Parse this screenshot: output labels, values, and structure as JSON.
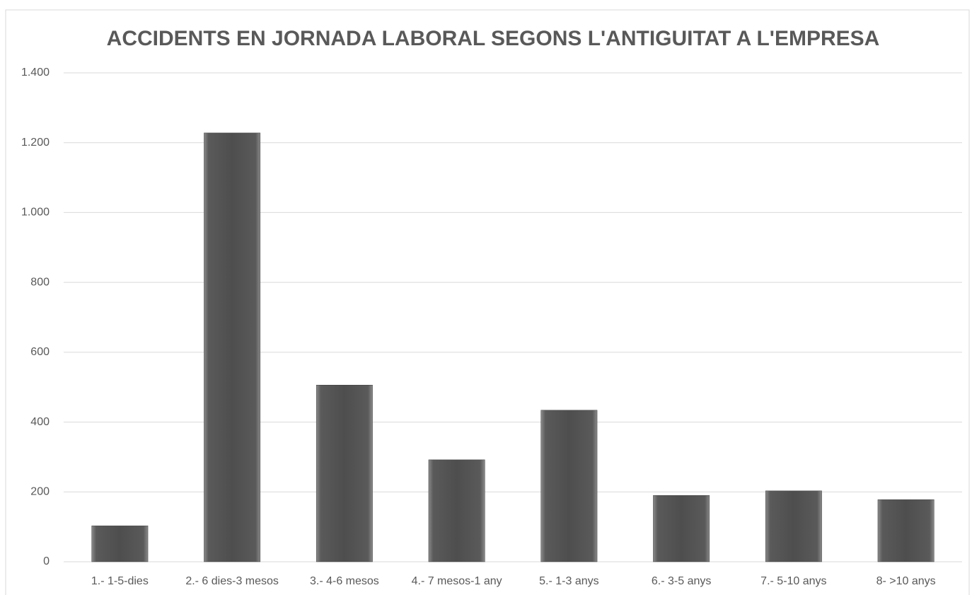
{
  "chart_data": {
    "type": "bar",
    "title": "ACCIDENTS EN JORNADA LABORAL SEGONS L'ANTIGUITAT A L'EMPRESA",
    "categories": [
      "1.- 1-5-dies",
      "2.- 6 dies-3 mesos",
      "3.- 4-6 mesos",
      "4.- 7 mesos-1 any",
      "5.- 1-3 anys",
      "6.- 3-5 anys",
      "7.- 5-10 anys",
      "8- >10 anys"
    ],
    "values": [
      103,
      1228,
      506,
      292,
      434,
      190,
      203,
      178
    ],
    "color": "#555555",
    "ylim": [
      0,
      1400
    ],
    "yticks": [
      0,
      200,
      400,
      600,
      800,
      {
        "value": 1000,
        "label": "1.000"
      },
      {
        "value": 1200,
        "label": "1.200"
      },
      {
        "value": 1400,
        "label": "1.400"
      }
    ],
    "grid": true
  }
}
